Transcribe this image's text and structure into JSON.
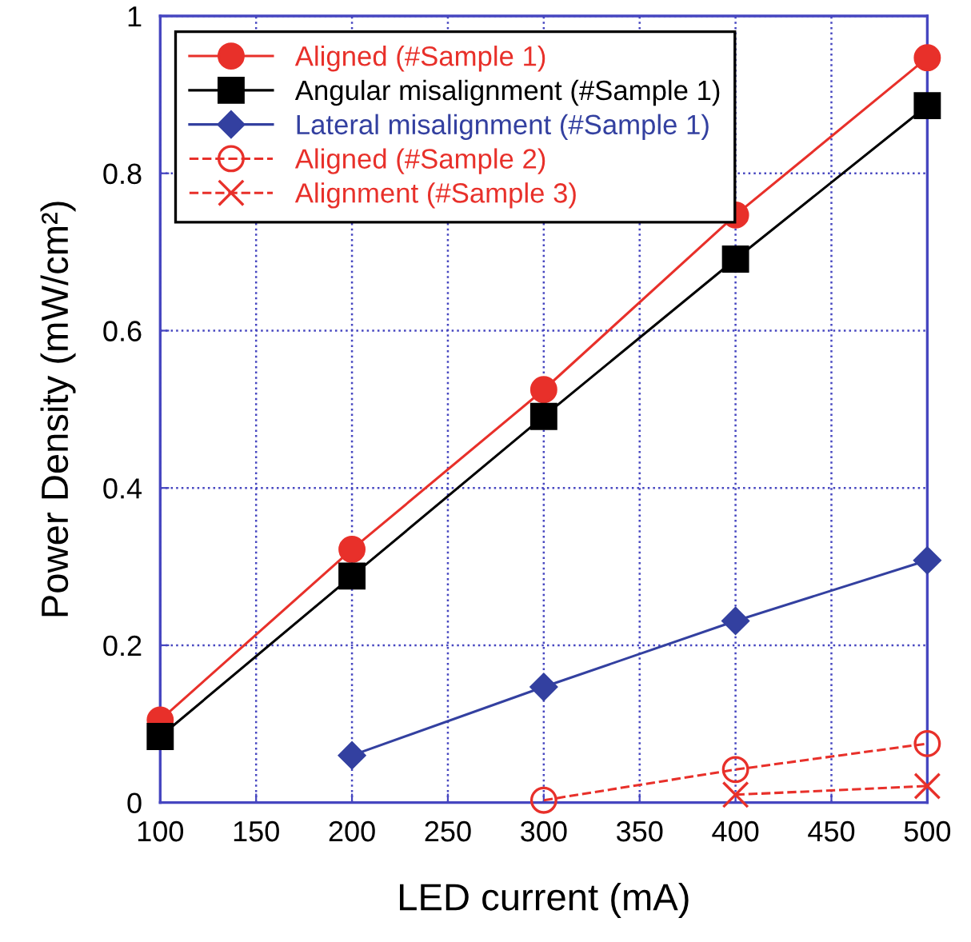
{
  "chart_data": {
    "type": "line",
    "xlabel": "LED current (mA)",
    "ylabel": "Power Density (mW/cm²)",
    "x": [
      100,
      200,
      300,
      400,
      500
    ],
    "xlim": [
      100,
      500
    ],
    "xticks": [
      100,
      150,
      200,
      250,
      300,
      350,
      400,
      450,
      500
    ],
    "ylim": [
      0,
      1
    ],
    "yticks": [
      0,
      0.2,
      0.4,
      0.6,
      0.8,
      1
    ],
    "grid": true,
    "legend": "top left",
    "series": [
      {
        "name": "Aligned (#Sample 1)",
        "color": "#e8302a",
        "marker": "circle",
        "line_style": "solid",
        "values": [
          0.105,
          0.322,
          0.525,
          0.747,
          0.947
        ]
      },
      {
        "name": "Angular misalignment (#Sample 1)",
        "color": "#000000",
        "marker": "square",
        "line_style": "solid",
        "values": [
          0.084,
          0.288,
          0.491,
          0.691,
          0.886
        ]
      },
      {
        "name": "Lateral misalignment (#Sample 1)",
        "color": "#3340a0",
        "marker": "diamond",
        "line_style": "solid",
        "values": [
          null,
          0.06,
          0.147,
          0.231,
          0.308
        ]
      },
      {
        "name": "Aligned (#Sample 2)",
        "color": "#e8302a",
        "marker": "open circle",
        "line_style": "dashed",
        "values": [
          null,
          null,
          0.003,
          0.042,
          0.075
        ]
      },
      {
        "name": "Alignment (#Sample 3)",
        "color": "#e8302a",
        "marker": "cross",
        "line_style": "dashed",
        "values": [
          null,
          null,
          null,
          0.01,
          0.021
        ]
      }
    ]
  }
}
